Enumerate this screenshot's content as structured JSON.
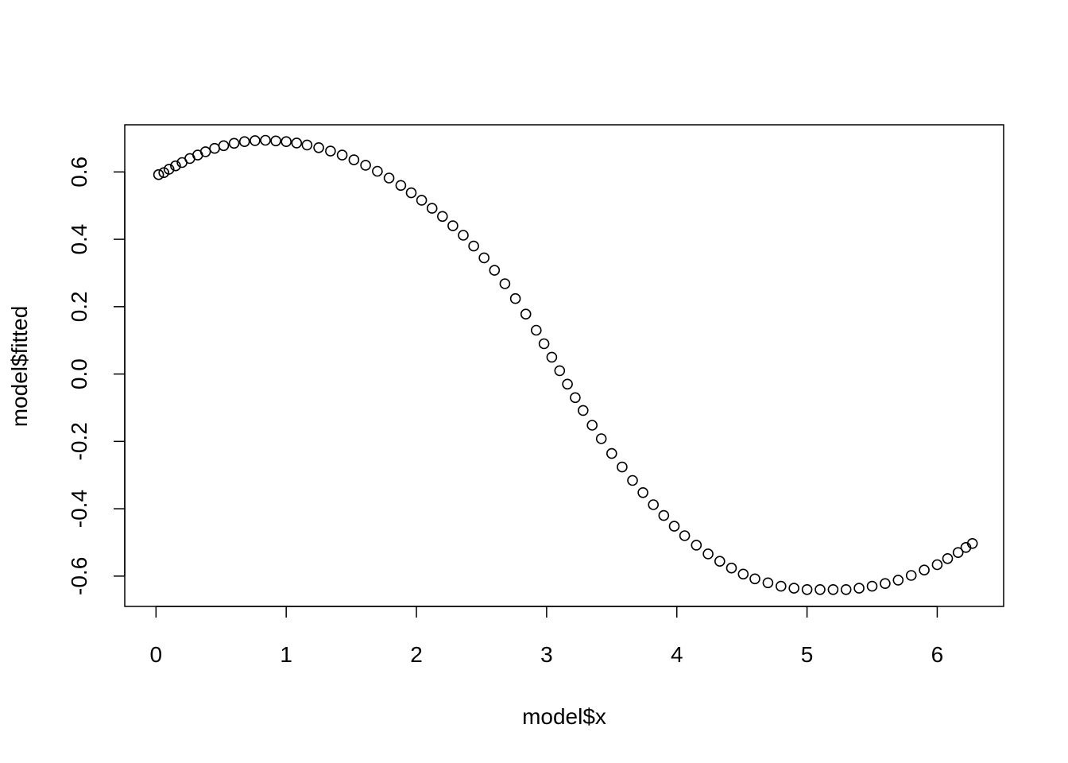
{
  "chart_data": {
    "type": "scatter",
    "title": "",
    "xlabel": "model$x",
    "ylabel": "model$fitted",
    "xlim": [
      -0.24,
      6.51
    ],
    "ylim": [
      -0.69,
      0.74
    ],
    "x_ticks": [
      0,
      1,
      2,
      3,
      4,
      5,
      6
    ],
    "x_tick_labels": [
      "0",
      "1",
      "2",
      "3",
      "4",
      "5",
      "6"
    ],
    "y_ticks": [
      -0.6,
      -0.4,
      -0.2,
      0.0,
      0.2,
      0.4,
      0.6
    ],
    "y_tick_labels": [
      "-0.6",
      "-0.4",
      "-0.2",
      "0.0",
      "0.2",
      "0.4",
      "0.6"
    ],
    "grid": false,
    "legend": "none",
    "marker": "open-circle",
    "marker_color": "#000000",
    "series": [
      {
        "x": [
          0.02,
          0.06,
          0.1,
          0.15,
          0.2,
          0.26,
          0.32,
          0.38,
          0.45,
          0.52,
          0.6,
          0.68,
          0.76,
          0.84,
          0.92,
          1.0,
          1.08,
          1.16,
          1.25,
          1.34,
          1.43,
          1.52,
          1.61,
          1.7,
          1.79,
          1.88,
          1.96,
          2.04,
          2.12,
          2.2,
          2.28,
          2.36,
          2.44,
          2.52,
          2.6,
          2.68,
          2.76,
          2.84,
          2.92,
          2.98,
          3.04,
          3.1,
          3.16,
          3.22,
          3.28,
          3.35,
          3.42,
          3.5,
          3.58,
          3.66,
          3.74,
          3.82,
          3.9,
          3.98,
          4.06,
          4.15,
          4.24,
          4.33,
          4.42,
          4.51,
          4.6,
          4.7,
          4.8,
          4.9,
          5.0,
          5.1,
          5.2,
          5.3,
          5.4,
          5.5,
          5.6,
          5.7,
          5.8,
          5.9,
          6.0,
          6.08,
          6.16,
          6.22,
          6.27
        ],
        "y": [
          0.592,
          0.598,
          0.608,
          0.618,
          0.628,
          0.64,
          0.65,
          0.66,
          0.67,
          0.678,
          0.685,
          0.69,
          0.693,
          0.694,
          0.692,
          0.69,
          0.686,
          0.68,
          0.672,
          0.662,
          0.65,
          0.636,
          0.62,
          0.602,
          0.582,
          0.56,
          0.538,
          0.516,
          0.492,
          0.468,
          0.44,
          0.412,
          0.38,
          0.345,
          0.308,
          0.268,
          0.224,
          0.178,
          0.13,
          0.09,
          0.05,
          0.01,
          -0.03,
          -0.07,
          -0.108,
          -0.152,
          -0.192,
          -0.236,
          -0.276,
          -0.316,
          -0.352,
          -0.388,
          -0.42,
          -0.452,
          -0.48,
          -0.508,
          -0.534,
          -0.556,
          -0.576,
          -0.594,
          -0.608,
          -0.62,
          -0.63,
          -0.636,
          -0.64,
          -0.64,
          -0.64,
          -0.64,
          -0.636,
          -0.63,
          -0.622,
          -0.612,
          -0.598,
          -0.582,
          -0.566,
          -0.548,
          -0.53,
          -0.515,
          -0.503
        ]
      }
    ]
  }
}
